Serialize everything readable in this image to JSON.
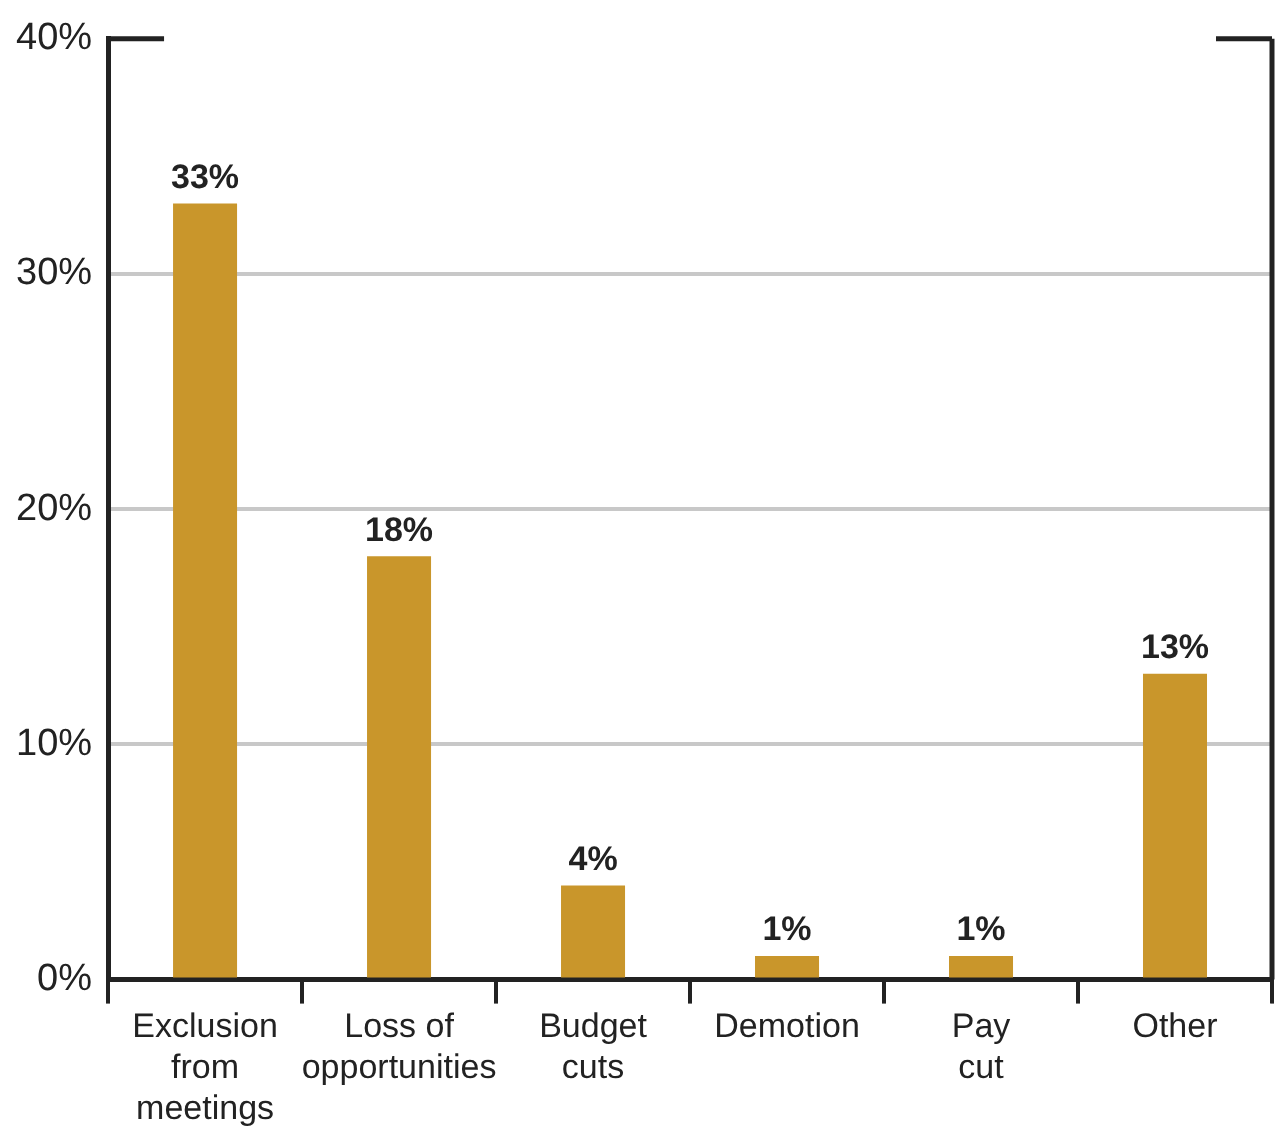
{
  "chart_data": {
    "type": "bar",
    "categories": [
      "Exclusion\nfrom\nmeetings",
      "Loss of\nopportunities",
      "Budget\ncuts",
      "Demotion",
      "Pay\ncut",
      "Other"
    ],
    "values": [
      33,
      18,
      4,
      1,
      1,
      13
    ],
    "value_labels": [
      "33%",
      "18%",
      "4%",
      "1%",
      "1%",
      "13%"
    ],
    "color": "#c9962b",
    "ylim": [
      0,
      40
    ],
    "yticks": [
      {
        "value": 0,
        "label": "0%"
      },
      {
        "value": 10,
        "label": "10%"
      },
      {
        "value": 20,
        "label": "20%"
      },
      {
        "value": 30,
        "label": "30%"
      },
      {
        "value": 40,
        "label": "40%"
      }
    ],
    "grid": "y",
    "legend": false
  }
}
